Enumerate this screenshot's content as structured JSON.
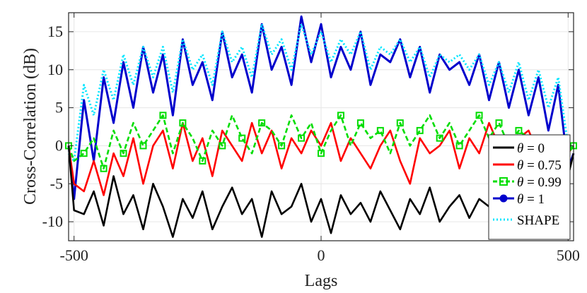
{
  "chart_data": {
    "type": "line",
    "title": "",
    "xlabel": "Lags",
    "ylabel": "Cross-Correlation (dB)",
    "xlim": [
      -511,
      511
    ],
    "ylim": [
      -12.5,
      17.5
    ],
    "xticks": [
      -500,
      0,
      500
    ],
    "xtick_labels": [
      "-500",
      "0",
      "500"
    ],
    "yticks": [
      -10,
      -5,
      0,
      5,
      10,
      15
    ],
    "ytick_labels": [
      "-10",
      "-5",
      "0",
      "5",
      "10",
      "15"
    ],
    "grid": true,
    "legend_position": "lower-right",
    "series": [
      {
        "name": "θ = 0",
        "legend_symbol": "θ",
        "legend_value": " = 0",
        "color": "#000000",
        "style": "solid",
        "marker": "none",
        "x": [
          -511,
          -500,
          -480,
          -460,
          -440,
          -420,
          -400,
          -380,
          -360,
          -340,
          -320,
          -300,
          -280,
          -260,
          -240,
          -220,
          -200,
          -180,
          -160,
          -140,
          -120,
          -100,
          -80,
          -60,
          -40,
          -20,
          0,
          20,
          40,
          60,
          80,
          100,
          120,
          140,
          160,
          180,
          200,
          220,
          240,
          260,
          280,
          300,
          320,
          340,
          360,
          380,
          400,
          420,
          440,
          460,
          480,
          500,
          511
        ],
        "values": [
          0,
          -8.5,
          -9,
          -6,
          -10.5,
          -4,
          -9,
          -6.5,
          -11,
          -5,
          -8,
          -12,
          -7,
          -9.5,
          -6,
          -11,
          -8,
          -5.5,
          -9,
          -7,
          -12,
          -6,
          -9,
          -8,
          -5,
          -10,
          -7,
          -11.5,
          -6.5,
          -9,
          -7.5,
          -10,
          -6,
          -8.5,
          -11,
          -7,
          -9,
          -5.5,
          -10,
          -8,
          -6.5,
          -9.5,
          -7,
          -8,
          -5,
          -7.5,
          -6,
          -5,
          -4,
          -3.5,
          -3,
          -4,
          -1
        ]
      },
      {
        "name": "θ = 0.75",
        "legend_symbol": "θ",
        "legend_value": " = 0.75",
        "color": "#ff0000",
        "style": "solid",
        "marker": "none",
        "x": [
          -511,
          -500,
          -480,
          -460,
          -440,
          -420,
          -400,
          -380,
          -360,
          -340,
          -320,
          -300,
          -280,
          -260,
          -240,
          -220,
          -200,
          -180,
          -160,
          -140,
          -120,
          -100,
          -80,
          -60,
          -40,
          -20,
          0,
          20,
          40,
          60,
          80,
          100,
          120,
          140,
          160,
          180,
          200,
          220,
          240,
          260,
          280,
          300,
          320,
          340,
          360,
          380,
          400,
          420,
          440,
          460,
          480,
          500,
          511
        ],
        "values": [
          0,
          -5,
          -6,
          -2,
          -6.5,
          -1,
          -4,
          1,
          -5,
          0,
          2,
          -3,
          3,
          -2,
          1,
          -4,
          2,
          0,
          -2,
          3,
          -1,
          2,
          -3,
          1,
          -1,
          2,
          0,
          3,
          -2,
          1,
          -1,
          -3,
          0,
          2,
          -2,
          -5,
          1,
          -1,
          0,
          2,
          -3,
          1,
          -1,
          3,
          0,
          -2,
          1,
          2,
          -1,
          0,
          -2,
          -1,
          0
        ]
      },
      {
        "name": "θ = 0.99",
        "legend_symbol": "θ",
        "legend_value": " = 0.99",
        "color": "#00dd00",
        "style": "dashed",
        "marker": "square",
        "x": [
          -511,
          -500,
          -480,
          -460,
          -440,
          -420,
          -400,
          -380,
          -360,
          -340,
          -320,
          -300,
          -280,
          -260,
          -240,
          -220,
          -200,
          -180,
          -160,
          -140,
          -120,
          -100,
          -80,
          -60,
          -40,
          -20,
          0,
          20,
          40,
          60,
          80,
          100,
          120,
          140,
          160,
          180,
          200,
          220,
          240,
          260,
          280,
          300,
          320,
          340,
          360,
          380,
          400,
          420,
          440,
          460,
          480,
          500,
          511
        ],
        "values": [
          0,
          -2,
          -1,
          1,
          -3,
          2,
          -1,
          3,
          0,
          2,
          4,
          -1,
          3,
          1,
          -2,
          2,
          0,
          4,
          1,
          -1,
          3,
          2,
          0,
          4,
          1,
          3,
          -1,
          2,
          4,
          0,
          3,
          1,
          2,
          -1,
          3,
          0,
          2,
          4,
          1,
          3,
          0,
          2,
          4,
          1,
          3,
          0,
          2,
          1,
          0,
          -1,
          0,
          -1,
          0
        ]
      },
      {
        "name": "θ = 1",
        "legend_symbol": "θ",
        "legend_value": " = 1",
        "color": "#0000cc",
        "style": "solid",
        "marker": "star",
        "x": [
          -511,
          -500,
          -480,
          -460,
          -440,
          -420,
          -400,
          -380,
          -360,
          -340,
          -320,
          -300,
          -280,
          -260,
          -240,
          -220,
          -200,
          -180,
          -160,
          -140,
          -120,
          -100,
          -80,
          -60,
          -40,
          -20,
          0,
          20,
          40,
          60,
          80,
          100,
          120,
          140,
          160,
          180,
          200,
          220,
          240,
          260,
          280,
          300,
          320,
          340,
          360,
          380,
          400,
          420,
          440,
          460,
          480,
          500,
          511
        ],
        "values": [
          0,
          -7,
          6,
          -2,
          9,
          3,
          11,
          5,
          13,
          7,
          12,
          4,
          14,
          8,
          11,
          6,
          15,
          9,
          12,
          7,
          16,
          10,
          13,
          8,
          17,
          11,
          16,
          9,
          13,
          10,
          15,
          8,
          12,
          11,
          14,
          9,
          13,
          7,
          12,
          10,
          11,
          8,
          12,
          6,
          11,
          5,
          10,
          4,
          9,
          2,
          8,
          -3,
          -1
        ]
      },
      {
        "name": "SHAPE",
        "legend_symbol": "",
        "legend_value": "SHAPE",
        "color": "#00e5ff",
        "style": "dotted",
        "marker": "none",
        "x": [
          -511,
          -500,
          -480,
          -460,
          -440,
          -420,
          -400,
          -380,
          -360,
          -340,
          -320,
          -300,
          -280,
          -260,
          -240,
          -220,
          -200,
          -180,
          -160,
          -140,
          -120,
          -100,
          -80,
          -60,
          -40,
          -20,
          0,
          20,
          40,
          60,
          80,
          100,
          120,
          140,
          160,
          180,
          200,
          220,
          240,
          260,
          280,
          300,
          320,
          340,
          360,
          380,
          400,
          420,
          440,
          460,
          480,
          500,
          511
        ],
        "values": [
          -1,
          -2,
          8,
          4,
          10,
          6,
          12,
          8,
          13,
          9,
          13,
          7,
          14,
          10,
          12,
          8,
          15,
          11,
          13,
          9,
          16,
          12,
          14,
          10,
          16,
          12,
          15,
          11,
          14,
          12,
          15,
          10,
          13,
          12,
          14,
          11,
          13,
          9,
          12,
          11,
          12,
          10,
          12,
          8,
          11,
          7,
          11,
          6,
          10,
          5,
          9,
          0,
          0
        ]
      }
    ]
  }
}
